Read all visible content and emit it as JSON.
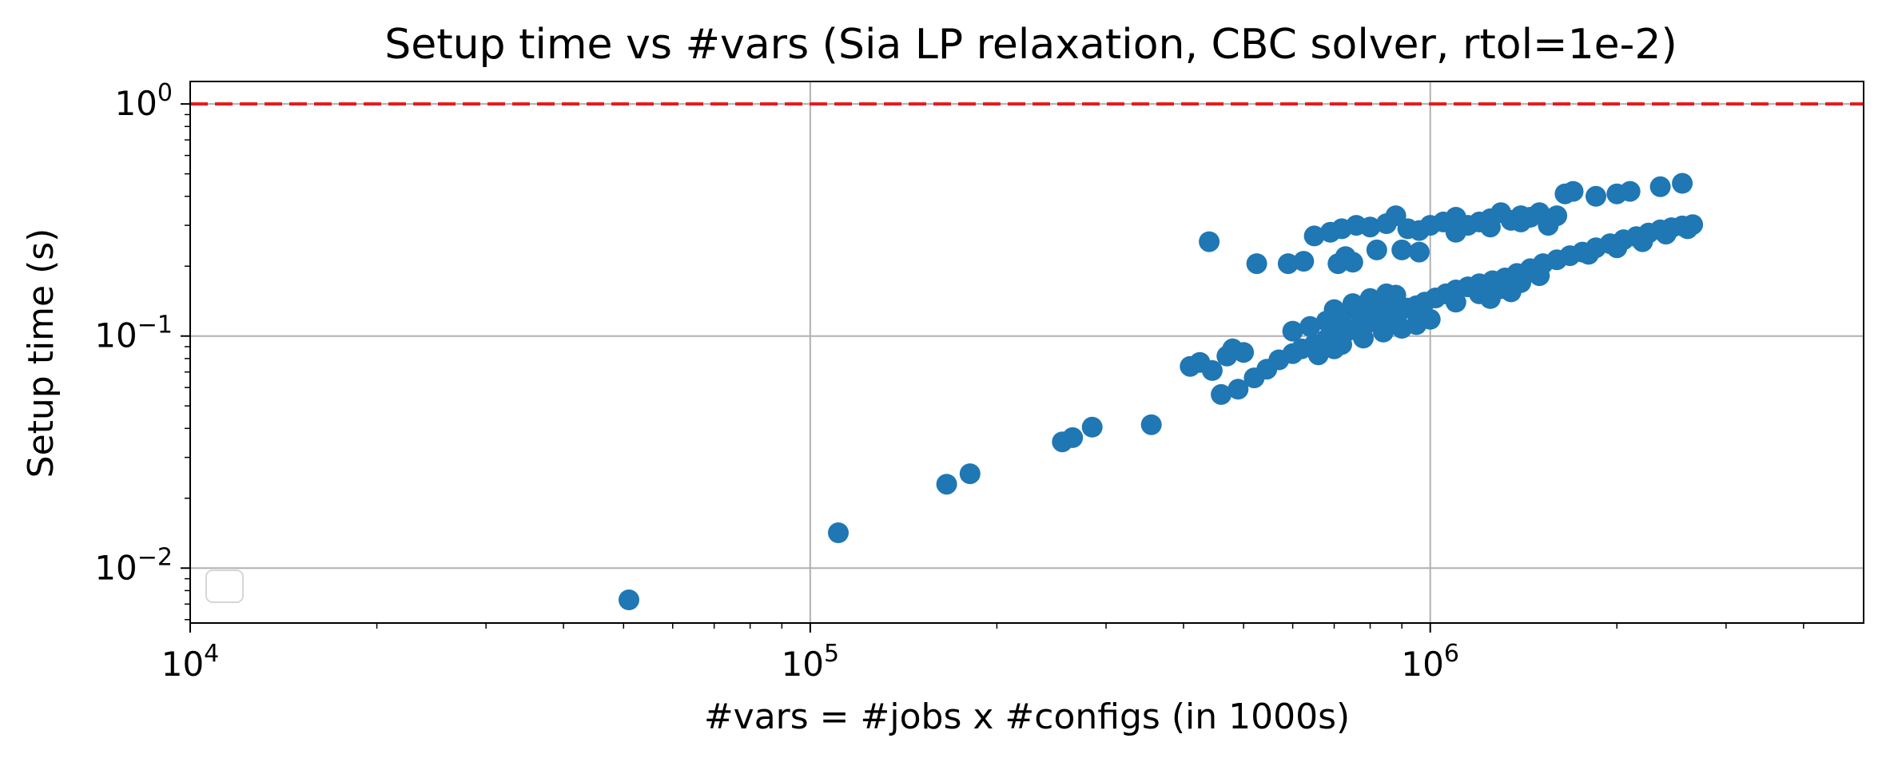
{
  "chart_data": {
    "type": "scatter",
    "title": "Setup time vs #vars (Sia LP relaxation, CBC solver, rtol=1e-2)",
    "xlabel": "#vars = #jobs x #configs (in 1000s)",
    "ylabel": "Setup time (s)",
    "xscale": "log",
    "yscale": "log",
    "xlim": [
      10000,
      5000000
    ],
    "ylim": [
      0.0058,
      1.25
    ],
    "xticks": [
      {
        "base": "10",
        "exp": "4",
        "value": 10000
      },
      {
        "base": "10",
        "exp": "5",
        "value": 100000
      },
      {
        "base": "10",
        "exp": "6",
        "value": 1000000
      }
    ],
    "yticks": [
      {
        "base": "10",
        "exp": "0",
        "value": 1
      },
      {
        "base": "10",
        "exp": "−1",
        "value": 0.1
      },
      {
        "base": "10",
        "exp": "−2",
        "value": 0.01
      }
    ],
    "grid": true,
    "legend": {
      "placement": "lower-left",
      "entries": []
    },
    "reference_line": {
      "y": 1.0,
      "style": "dashed",
      "color": "#e41a1c"
    },
    "marker_color": "#1f77b4",
    "points": [
      [
        51000,
        0.0073
      ],
      [
        111000,
        0.0142
      ],
      [
        166000,
        0.023
      ],
      [
        181000,
        0.0255
      ],
      [
        255000,
        0.035
      ],
      [
        265000,
        0.0365
      ],
      [
        285000,
        0.0405
      ],
      [
        355000,
        0.0415
      ],
      [
        410000,
        0.074
      ],
      [
        425000,
        0.077
      ],
      [
        445000,
        0.071
      ],
      [
        470000,
        0.082
      ],
      [
        480000,
        0.088
      ],
      [
        500000,
        0.085
      ],
      [
        460000,
        0.056
      ],
      [
        490000,
        0.059
      ],
      [
        520000,
        0.066
      ],
      [
        545000,
        0.072
      ],
      [
        570000,
        0.079
      ],
      [
        600000,
        0.084
      ],
      [
        620000,
        0.088
      ],
      [
        650000,
        0.092
      ],
      [
        680000,
        0.097
      ],
      [
        710000,
        0.101
      ],
      [
        740000,
        0.106
      ],
      [
        770000,
        0.11
      ],
      [
        800000,
        0.115
      ],
      [
        830000,
        0.118
      ],
      [
        860000,
        0.12
      ],
      [
        890000,
        0.127
      ],
      [
        920000,
        0.132
      ],
      [
        950000,
        0.135
      ],
      [
        980000,
        0.14
      ],
      [
        1020000,
        0.146
      ],
      [
        1060000,
        0.152
      ],
      [
        1100000,
        0.158
      ],
      [
        1150000,
        0.163
      ],
      [
        1200000,
        0.168
      ],
      [
        1260000,
        0.173
      ],
      [
        1320000,
        0.178
      ],
      [
        1380000,
        0.186
      ],
      [
        1450000,
        0.195
      ],
      [
        1520000,
        0.205
      ],
      [
        1600000,
        0.213
      ],
      [
        1680000,
        0.222
      ],
      [
        1760000,
        0.23
      ],
      [
        1850000,
        0.24
      ],
      [
        1950000,
        0.25
      ],
      [
        2050000,
        0.26
      ],
      [
        2150000,
        0.268
      ],
      [
        2250000,
        0.278
      ],
      [
        2350000,
        0.287
      ],
      [
        2450000,
        0.293
      ],
      [
        2550000,
        0.298
      ],
      [
        2650000,
        0.302
      ],
      [
        600000,
        0.105
      ],
      [
        640000,
        0.11
      ],
      [
        680000,
        0.116
      ],
      [
        720000,
        0.122
      ],
      [
        760000,
        0.129
      ],
      [
        800000,
        0.136
      ],
      [
        840000,
        0.142
      ],
      [
        880000,
        0.15
      ],
      [
        700000,
        0.13
      ],
      [
        750000,
        0.138
      ],
      [
        800000,
        0.145
      ],
      [
        850000,
        0.152
      ],
      [
        720000,
        0.092
      ],
      [
        780000,
        0.098
      ],
      [
        840000,
        0.104
      ],
      [
        900000,
        0.108
      ],
      [
        950000,
        0.112
      ],
      [
        1000000,
        0.118
      ],
      [
        660000,
        0.083
      ],
      [
        700000,
        0.088
      ],
      [
        1200000,
        0.152
      ],
      [
        1300000,
        0.16
      ],
      [
        1400000,
        0.17
      ],
      [
        1500000,
        0.182
      ],
      [
        1100000,
        0.14
      ],
      [
        1250000,
        0.145
      ],
      [
        1350000,
        0.155
      ],
      [
        1800000,
        0.225
      ],
      [
        2000000,
        0.24
      ],
      [
        2200000,
        0.255
      ],
      [
        2400000,
        0.275
      ],
      [
        2600000,
        0.29
      ],
      [
        440000,
        0.255
      ],
      [
        525000,
        0.205
      ],
      [
        590000,
        0.205
      ],
      [
        625000,
        0.21
      ],
      [
        710000,
        0.205
      ],
      [
        750000,
        0.208
      ],
      [
        730000,
        0.22
      ],
      [
        820000,
        0.235
      ],
      [
        900000,
        0.235
      ],
      [
        960000,
        0.23
      ],
      [
        650000,
        0.27
      ],
      [
        690000,
        0.28
      ],
      [
        720000,
        0.29
      ],
      [
        760000,
        0.3
      ],
      [
        800000,
        0.295
      ],
      [
        850000,
        0.305
      ],
      [
        880000,
        0.33
      ],
      [
        920000,
        0.29
      ],
      [
        960000,
        0.285
      ],
      [
        1000000,
        0.3
      ],
      [
        1050000,
        0.31
      ],
      [
        1100000,
        0.325
      ],
      [
        1150000,
        0.3
      ],
      [
        1200000,
        0.31
      ],
      [
        1250000,
        0.32
      ],
      [
        1300000,
        0.34
      ],
      [
        1350000,
        0.315
      ],
      [
        1400000,
        0.33
      ],
      [
        1450000,
        0.325
      ],
      [
        1500000,
        0.34
      ],
      [
        1550000,
        0.3
      ],
      [
        1600000,
        0.33
      ],
      [
        1650000,
        0.41
      ],
      [
        1700000,
        0.42
      ],
      [
        1850000,
        0.4
      ],
      [
        2000000,
        0.41
      ],
      [
        2100000,
        0.42
      ],
      [
        2350000,
        0.44
      ],
      [
        2550000,
        0.455
      ],
      [
        1100000,
        0.28
      ],
      [
        1250000,
        0.295
      ],
      [
        1400000,
        0.31
      ]
    ]
  }
}
